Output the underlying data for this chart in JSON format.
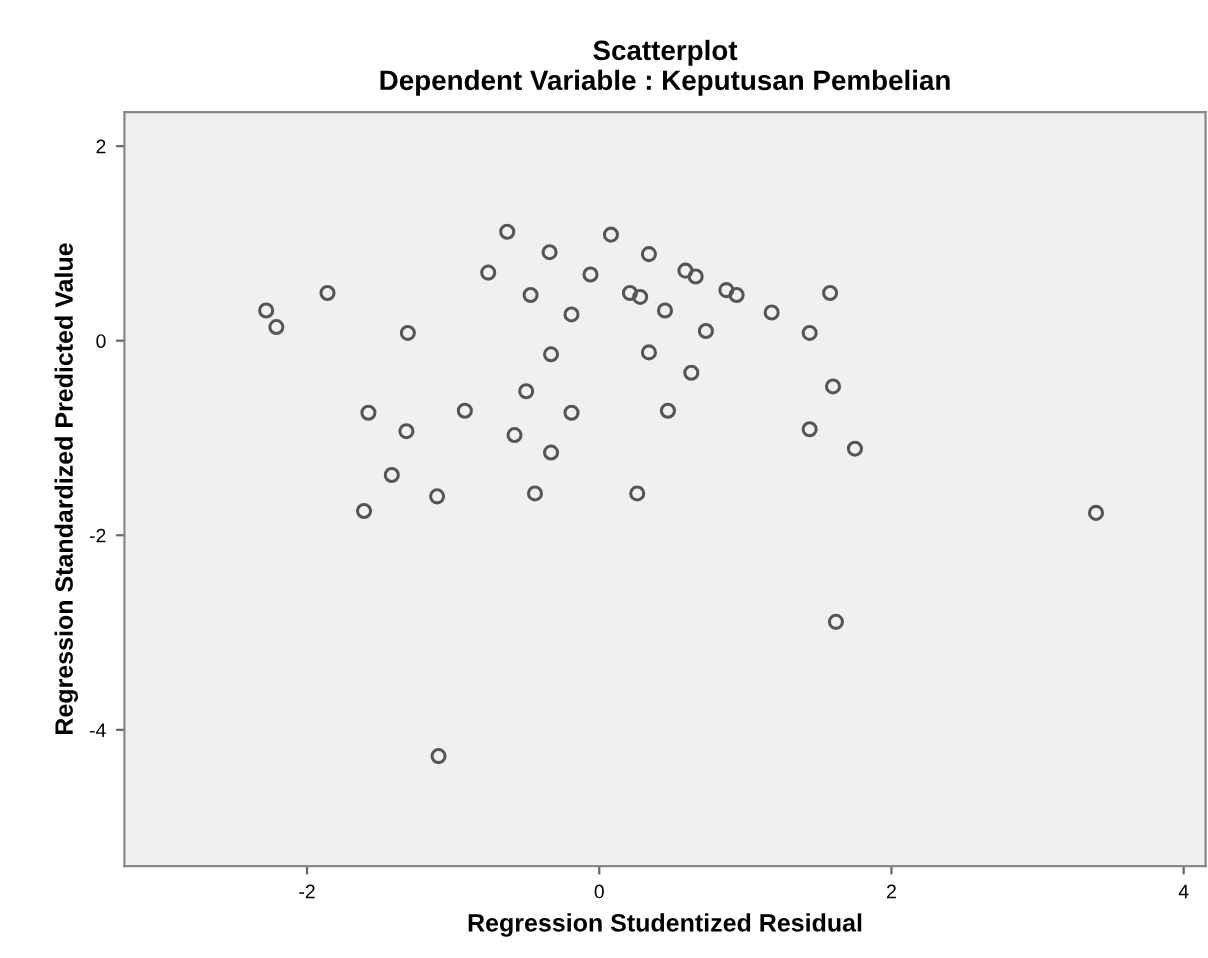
{
  "chart_data": {
    "type": "scatter",
    "title": "Scatterplot\nDependent Variable : Keputusan Pembelian",
    "xlabel": "Regression Studentized Residual",
    "ylabel": "Regression Standardized Predicted Value",
    "xlim": [
      -3.25,
      4.15
    ],
    "ylim": [
      -5.4,
      2.35
    ],
    "xticks": [
      -2,
      0,
      2,
      4
    ],
    "yticks": [
      -4,
      -2,
      0,
      2
    ],
    "grid": false,
    "marker": "circle",
    "series": [
      {
        "color": "#555555",
        "x": [
          -2.28,
          -2.21,
          -1.86,
          -1.31,
          -1.58,
          -1.32,
          -1.42,
          -1.61,
          -1.11,
          -0.92,
          -0.63,
          -0.76,
          -0.34,
          -0.47,
          -0.19,
          -0.33,
          -0.5,
          -0.19,
          -0.58,
          -0.33,
          -0.44,
          0.08,
          -0.06,
          0.34,
          0.21,
          0.28,
          0.59,
          0.66,
          0.45,
          0.34,
          0.87,
          0.94,
          0.73,
          0.63,
          0.47,
          1.18,
          1.58,
          1.44,
          1.6,
          1.44,
          1.75,
          0.26,
          3.4,
          1.62,
          -1.1
        ],
        "values": [
          0.31,
          0.14,
          0.49,
          0.08,
          -0.74,
          -0.93,
          -1.38,
          -1.75,
          -1.6,
          -0.72,
          1.12,
          0.7,
          0.91,
          0.47,
          0.27,
          -0.14,
          -0.52,
          -0.74,
          -0.97,
          -1.15,
          -1.57,
          1.09,
          0.68,
          0.89,
          0.49,
          0.45,
          0.72,
          0.66,
          0.31,
          -0.12,
          0.52,
          0.47,
          0.1,
          -0.33,
          -0.72,
          0.29,
          0.49,
          0.08,
          -0.47,
          -0.91,
          -1.11,
          -1.57,
          -1.77,
          -2.89,
          -4.27
        ]
      }
    ]
  }
}
